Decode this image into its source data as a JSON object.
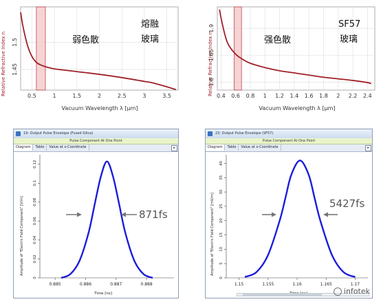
{
  "top_left": {
    "ylabel": "Relative Refractive Index n",
    "xlabel": "Vacuum Wavelength λ [µm]",
    "label_dispersion": "弱色散",
    "label_material_1": "熔融",
    "label_material_2": "玻璃",
    "xticks": [
      "0.5",
      "1",
      "1.5",
      "2",
      "2.5",
      "3",
      "3.5"
    ],
    "yticks": [
      "1.5",
      "1.45"
    ]
  },
  "top_right": {
    "ylabel": "Relative Refractive Index n",
    "xlabel": "Vacuum Wavelength λ [µm]",
    "label_dispersion": "强色散",
    "label_material_1": "SF57",
    "label_material_2": "玻璃",
    "xticks": [
      "0.4",
      "0.6",
      "0.8",
      "1",
      "1.2",
      "1.4",
      "1.6",
      "1.8",
      "2",
      "2.2",
      "2.4"
    ],
    "yticks": [
      "1.9",
      "1.85",
      "1.8"
    ]
  },
  "bottom_left": {
    "window_title": "19: Output Pulse Envelope (Fused Silica)",
    "header": "Pulse Component At One Point",
    "tabs": [
      "Diagram",
      "Table",
      "Value at x-Coordinate"
    ],
    "arrow_btn": "▸",
    "ylabel": "Amplitude of \"Electric Field Component\" [V/m]",
    "xlabel": "Time [ns]",
    "xticks": [
      "0.885",
      "0.886",
      "0.887",
      "0.888"
    ],
    "yticks": [
      "0",
      "0.02",
      "0.04",
      "0.06",
      "0.08",
      "0.1",
      "0.12"
    ],
    "width_label": "871fs"
  },
  "bottom_right": {
    "window_title": "23: Output Pulse Envelope (SF57)",
    "header": "Pulse Component At One Point",
    "tabs": [
      "Diagram",
      "Table",
      "Value at x-Coordinate"
    ],
    "arrow_btn": "▸",
    "ylabel": "Amplitude of \"Electric Field Component\" [mV/m]",
    "xlabel": "Time [ns]",
    "xticks": [
      "1.15",
      "1.155",
      "1.16",
      "1.165",
      "1.17"
    ],
    "yticks": [
      "0",
      "5",
      "10",
      "15",
      "20",
      "25",
      "30",
      "35",
      "40"
    ],
    "width_label": "5427fs"
  },
  "watermark": "infotek",
  "colors": {
    "index_curve": "#a02028",
    "highlight": "#f2c2c2",
    "pulse": "#1c1cdc",
    "arrow": "#777777"
  },
  "chart_data": [
    {
      "type": "line",
      "title": "",
      "xlabel": "Vacuum Wavelength λ [µm]",
      "ylabel": "Relative Refractive Index n",
      "xlim": [
        0.25,
        3.75
      ],
      "ylim": [
        1.412,
        1.565
      ],
      "highlight_band_x": [
        0.6,
        0.8
      ],
      "x": [
        0.25,
        0.3,
        0.4,
        0.5,
        0.6,
        0.7,
        0.8,
        1.0,
        1.2,
        1.5,
        2.0,
        2.5,
        3.0,
        3.2,
        3.5,
        3.7
      ],
      "y": [
        1.555,
        1.53,
        1.495,
        1.474,
        1.463,
        1.458,
        1.455,
        1.451,
        1.449,
        1.446,
        1.441,
        1.435,
        1.428,
        1.425,
        1.418,
        1.413
      ]
    },
    {
      "type": "line",
      "title": "",
      "xlabel": "Vacuum Wavelength λ [µm]",
      "ylabel": "Relative Refractive Index n",
      "xlim": [
        0.35,
        2.5
      ],
      "ylim": [
        1.785,
        1.94
      ],
      "highlight_band_x": [
        0.58,
        0.68
      ],
      "x": [
        0.38,
        0.4,
        0.45,
        0.5,
        0.6,
        0.7,
        0.8,
        1.0,
        1.2,
        1.4,
        1.6,
        1.8,
        2.0,
        2.2,
        2.4,
        2.45
      ],
      "y": [
        1.935,
        1.92,
        1.89,
        1.87,
        1.852,
        1.842,
        1.835,
        1.827,
        1.821,
        1.817,
        1.813,
        1.809,
        1.806,
        1.803,
        1.799,
        1.797
      ]
    },
    {
      "type": "line",
      "title": "",
      "xlabel": "Time [ns]",
      "ylabel": "Amplitude of \"Electric Field Component\" [V/m]",
      "xlim": [
        0.8845,
        0.8889
      ],
      "ylim": [
        0,
        0.13
      ],
      "series": [
        {
          "x": [
            0.8852,
            0.8855,
            0.8858,
            0.8861,
            0.8863,
            0.8865,
            0.8867,
            0.8869,
            0.8871,
            0.8873,
            0.8876,
            0.8879,
            0.8882
          ],
          "values": [
            0.0,
            0.004,
            0.018,
            0.048,
            0.078,
            0.107,
            0.123,
            0.107,
            0.078,
            0.048,
            0.018,
            0.004,
            0.0
          ]
        }
      ],
      "annotation": "871fs"
    },
    {
      "type": "line",
      "title": "",
      "xlabel": "Time [ns]",
      "ylabel": "Amplitude of \"Electric Field Component\" [mV/m]",
      "xlim": [
        1.1478,
        1.1722
      ],
      "ylim": [
        0,
        43
      ],
      "series": [
        {
          "x": [
            1.151,
            1.153,
            1.155,
            1.157,
            1.158,
            1.159,
            1.1605,
            1.162,
            1.163,
            1.164,
            1.166,
            1.168,
            1.17
          ],
          "values": [
            0.3,
            2,
            8,
            20,
            28,
            36,
            41,
            36,
            28,
            20,
            8,
            2,
            0.3
          ]
        }
      ],
      "annotation": "5427fs"
    }
  ]
}
